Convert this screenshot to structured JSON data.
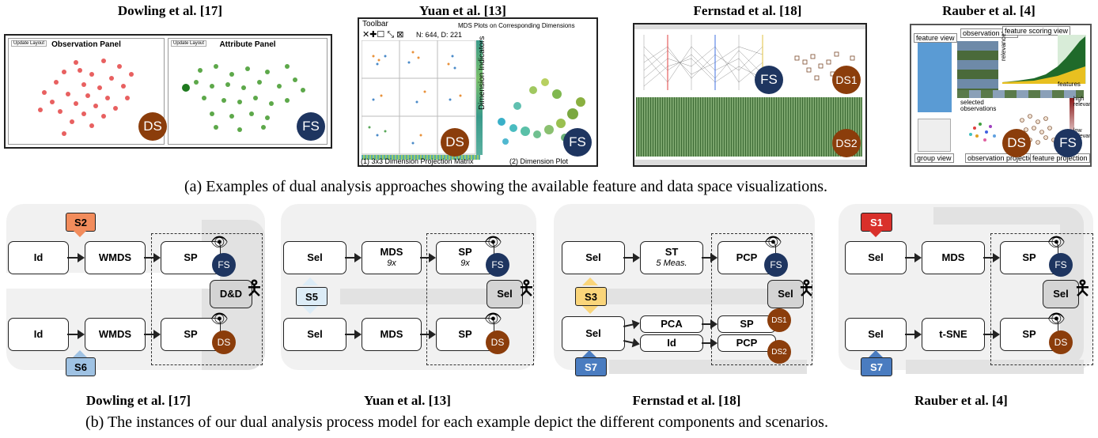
{
  "top_titles": [
    "Dowling et al. [17]",
    "Yuan et al. [13]",
    "Fernstad et al. [18]",
    "Rauber et al. [4]"
  ],
  "caption_a": "(a) Examples of dual analysis approaches showing the available feature and data space visualizations.",
  "caption_b": "(b) The instances of our dual analysis process model for each example depict the different components and scenarios.",
  "bottom_titles": [
    "Dowling et al. [17]",
    "Yuan et al. [13]",
    "Fernstad et al. [18]",
    "Rauber et al. [4]"
  ],
  "badges": {
    "ds": "DS",
    "fs": "FS",
    "ds1": "DS1",
    "ds2": "DS2"
  },
  "shots": {
    "dowling": {
      "update_label": "Update Layout",
      "obs_panel": "Observation Panel",
      "attr_panel": "Attribute Panel"
    },
    "yuan": {
      "toolbar": "Toolbar",
      "nd": "N: 644, D: 221",
      "mds_title": "MDS Plots on Corresponding Dimensions",
      "dim_ind": "Dimension Indicators",
      "label1": "(1) 3x3 Dimension Projection Matrix",
      "label2": "(2) Dimension Plot"
    },
    "rauber": {
      "feature_view": "feature view",
      "observation_view": "observation view",
      "feature_scoring_view": "feature scoring view",
      "features": "features",
      "relevance": "relevance",
      "selected_observations": "selected observations",
      "high_relevance": "high relevance",
      "low_relevance": "low relevance",
      "group_view": "group view",
      "observation_projection": "observation projection",
      "feature_projection": "feature projection"
    }
  },
  "diagrams": {
    "d1": {
      "scenario_top": "S2",
      "scenario_bottom": "S6",
      "row1": [
        "Id",
        "WMDS",
        "SP"
      ],
      "row2": [
        "Id",
        "WMDS",
        "SP"
      ],
      "interaction": "D&D"
    },
    "d2": {
      "scenario_mid": "S5",
      "row1": [
        "Sel",
        "MDS",
        "SP"
      ],
      "row1_sub": [
        "",
        "9x",
        "9x"
      ],
      "row2": [
        "Sel",
        "MDS",
        "SP"
      ],
      "interaction": "Sel"
    },
    "d3": {
      "scenario_mid": "S3",
      "scenario_bottom": "S7",
      "row1": [
        "Sel",
        "ST",
        "PCP"
      ],
      "row1_sub": "5 Meas.",
      "row2": [
        "Sel",
        "PCA",
        "Id",
        "SP",
        "PCP"
      ],
      "interaction": "Sel"
    },
    "d4": {
      "scenario_top": "S1",
      "scenario_bottom": "S7",
      "row1": [
        "Sel",
        "MDS",
        "SP"
      ],
      "row2": [
        "Sel",
        "t-SNE",
        "SP"
      ],
      "interaction": "Sel"
    }
  },
  "colors": {
    "ds": "#8b3d0b",
    "fs": "#1e3560",
    "s_orange": "#f28c5c",
    "s_red": "#d9302b",
    "s_blue": "#4a7cc0",
    "s_lightblue": "#9fc2e3",
    "s_paleblue": "#dcecf7",
    "s_yellow": "#fad57a"
  }
}
